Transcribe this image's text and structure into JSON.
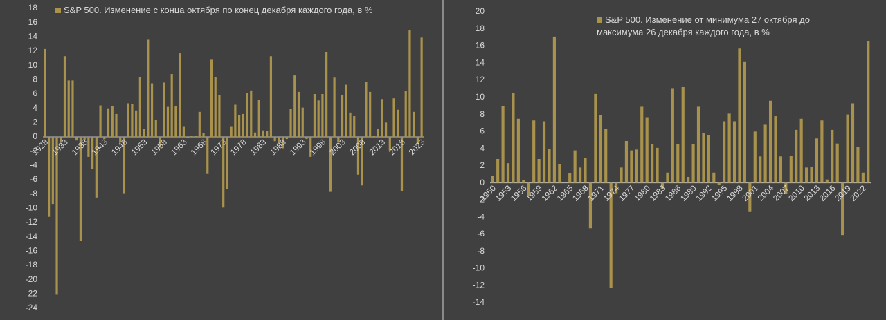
{
  "chart_data": [
    {
      "type": "bar",
      "categories": [
        "1928",
        null,
        null,
        null,
        null,
        "1933",
        null,
        null,
        null,
        null,
        "1938",
        null,
        null,
        null,
        null,
        "1943",
        null,
        null,
        null,
        null,
        "1948",
        null,
        null,
        null,
        null,
        "1953",
        null,
        null,
        null,
        null,
        "1958",
        null,
        null,
        null,
        null,
        "1963",
        null,
        null,
        null,
        null,
        "1968",
        null,
        null,
        null,
        null,
        "1973",
        null,
        null,
        null,
        null,
        "1978",
        null,
        null,
        null,
        null,
        "1983",
        null,
        null,
        null,
        null,
        "1988",
        null,
        null,
        null,
        null,
        "1993",
        null,
        null,
        null,
        null,
        "1998",
        null,
        null,
        null,
        null,
        "2003",
        null,
        null,
        null,
        null,
        "2008",
        null,
        null,
        null,
        null,
        "2013",
        null,
        null,
        null,
        null,
        "2018",
        null,
        null,
        null,
        null,
        "2023"
      ],
      "series": [
        {
          "name": "S&P 500. Изменение с конца октября по конец декабря каждого года, в %",
          "color": "#a8924c",
          "values": [
            12.3,
            -11.2,
            -9.4,
            -22.1,
            -0.7,
            11.3,
            7.9,
            7.9,
            -0.5,
            -14.6,
            -0.5,
            -2.8,
            -4.5,
            -8.5,
            4.4,
            -0.3,
            4.0,
            4.3,
            3.2,
            -0.8,
            -7.9,
            4.7,
            4.6,
            3.7,
            8.4,
            1.1,
            13.6,
            7.5,
            2.4,
            -1.5,
            7.6,
            4.2,
            8.8,
            4.3,
            11.7,
            1.4,
            -0.2,
            0.1,
            0.1,
            3.5,
            0.5,
            -5.2,
            10.8,
            8.4,
            5.9,
            -9.9,
            -7.3,
            1.4,
            4.5,
            3.0,
            3.2,
            6.1,
            6.5,
            0.6,
            5.2,
            0.9,
            0.8,
            11.3,
            -0.6,
            -0.8,
            -1.6,
            -0.3,
            3.9,
            8.6,
            6.3,
            4.1,
            -0.3,
            -2.8,
            6.0,
            5.1,
            6.0,
            11.9,
            -7.7,
            8.3,
            -0.8,
            5.9,
            7.3,
            3.4,
            2.9,
            -5.3,
            -6.8,
            7.7,
            6.3,
            0.1,
            1.1,
            5.3,
            2.0,
            -1.9,
            5.4,
            3.8,
            -7.6,
            6.4,
            14.9,
            3.5,
            -1.0,
            13.9
          ]
        }
      ],
      "ylim": [
        -24,
        18
      ],
      "yticks": [
        -24,
        -22,
        -20,
        -18,
        -16,
        -14,
        -12,
        -10,
        -8,
        -6,
        -4,
        -2,
        0,
        2,
        4,
        6,
        8,
        10,
        12,
        14,
        16,
        18
      ]
    },
    {
      "type": "bar",
      "categories": [
        "1950",
        null,
        null,
        "1953",
        null,
        null,
        "1956",
        null,
        null,
        "1959",
        null,
        null,
        "1962",
        null,
        null,
        "1965",
        null,
        null,
        "1968",
        null,
        null,
        "1971",
        null,
        null,
        "1974",
        null,
        null,
        "1977",
        null,
        null,
        "1980",
        null,
        null,
        "1983",
        null,
        null,
        "1986",
        null,
        null,
        "1989",
        null,
        null,
        "1992",
        null,
        null,
        "1995",
        null,
        null,
        "1998",
        null,
        null,
        "2001",
        null,
        null,
        "2004",
        null,
        null,
        "2007",
        null,
        null,
        "2010",
        null,
        null,
        "2013",
        null,
        null,
        "2016",
        null,
        null,
        "2019",
        null,
        null,
        "2022",
        null
      ],
      "series": [
        {
          "name": "S&P 500. Изменение от минимума 27 октября до максимума 26 декабря каждого года, в %",
          "color": "#a8924c",
          "values": [
            0.8,
            2.8,
            9.0,
            2.3,
            10.5,
            7.5,
            0.3,
            -1.5,
            7.3,
            2.8,
            7.2,
            4.0,
            17.1,
            2.2,
            0,
            1.1,
            3.8,
            1.8,
            2.9,
            -5.3,
            10.4,
            7.9,
            6.3,
            -12.3,
            -1.2,
            1.8,
            4.9,
            3.8,
            3.9,
            8.9,
            7.6,
            4.5,
            4.1,
            -0.7,
            1.2,
            11.0,
            4.5,
            11.2,
            0.7,
            4.5,
            8.9,
            5.8,
            5.6,
            1.2,
            -0.2,
            7.2,
            8.1,
            7.2,
            15.7,
            14.2,
            -3.4,
            6.0,
            3.1,
            6.8,
            9.6,
            7.8,
            3.1,
            -1.3,
            3.2,
            6.2,
            7.5,
            1.8,
            1.9,
            5.2,
            7.3,
            0.4,
            6.2,
            4.6,
            -6.1,
            8.0,
            9.3,
            4.2,
            1.2,
            16.6
          ]
        }
      ],
      "ylim": [
        -14,
        20
      ],
      "yticks": [
        -14,
        -12,
        -10,
        -8,
        -6,
        -4,
        -2,
        0,
        2,
        4,
        6,
        8,
        10,
        12,
        14,
        16,
        18,
        20
      ]
    }
  ]
}
